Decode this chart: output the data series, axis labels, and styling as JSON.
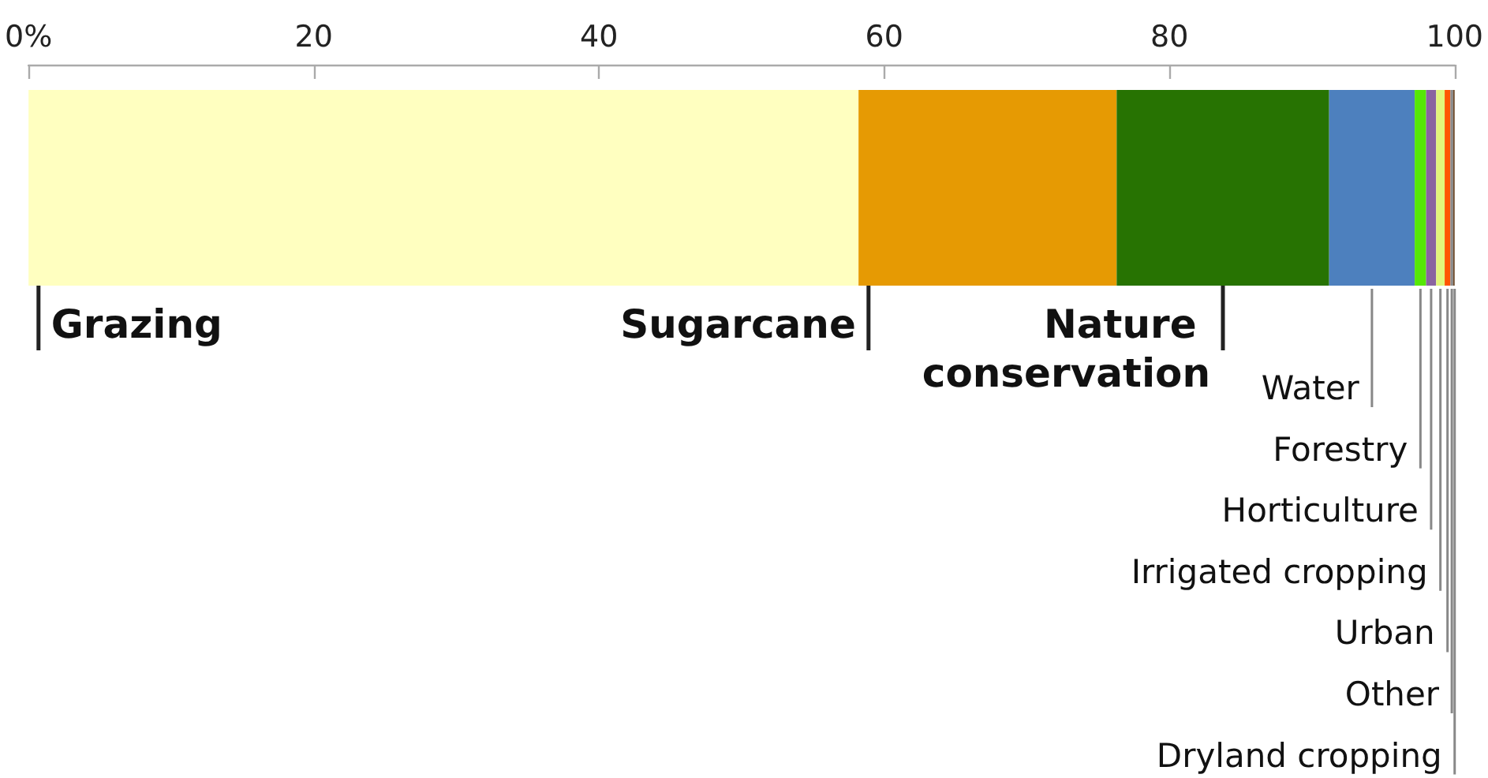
{
  "chart_data": {
    "type": "bar",
    "orientation": "horizontal",
    "stacked": true,
    "categories": [
      null
    ],
    "series": [
      {
        "name": "Grazing",
        "color": "#ffffc0",
        "values": [
          58.2
        ]
      },
      {
        "name": "Sugarcane",
        "color": "#e69a03",
        "values": [
          18.1
        ]
      },
      {
        "name": "Nature conservation",
        "color": "#277302",
        "values": [
          14.9
        ]
      },
      {
        "name": "Water",
        "color": "#4d80be",
        "values": [
          6.0
        ]
      },
      {
        "name": "Forestry",
        "color": "#55e805",
        "values": [
          0.8
        ]
      },
      {
        "name": "Horticulture",
        "color": "#8a64a0",
        "values": [
          0.7
        ]
      },
      {
        "name": "Irrigated cropping",
        "color": "#e2f57a",
        "values": [
          0.6
        ]
      },
      {
        "name": "Urban",
        "color": "#ff5500",
        "values": [
          0.4
        ]
      },
      {
        "name": "Other",
        "color": "#8c8c8c",
        "values": [
          0.2
        ]
      },
      {
        "name": "Dryland cropping",
        "color": "#6e4a2a",
        "values": [
          0.2
        ]
      }
    ],
    "xlim": [
      0,
      100
    ],
    "xticks": [
      {
        "value": 0,
        "label": "0%"
      },
      20,
      40,
      60,
      80,
      100
    ],
    "grid": false,
    "legend": false
  }
}
